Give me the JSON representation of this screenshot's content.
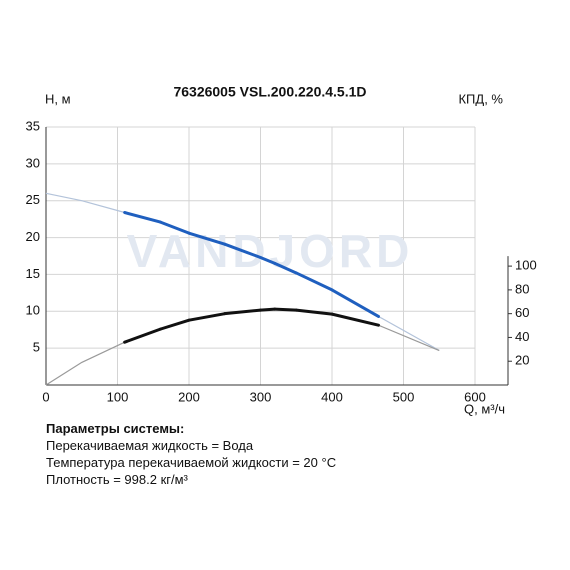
{
  "chart_data": {
    "type": "line",
    "title": "76326005 VSL.200.220.4.5.1D",
    "ylabel": "H, м",
    "y2label": "КПД, %",
    "xlabel": "Q, м³/ч",
    "watermark": "VANDJORD",
    "x": [
      0,
      50,
      110,
      160,
      200,
      250,
      300,
      320,
      350,
      400,
      465,
      550
    ],
    "series": [
      {
        "name": "H",
        "color": "#1f5fbf",
        "thin_color": "#b3c3da",
        "values": [
          26.0,
          25.0,
          23.4,
          22.1,
          20.6,
          19.1,
          17.3,
          16.5,
          15.2,
          12.9,
          9.3,
          4.7
        ]
      },
      {
        "name": "КПД",
        "axis": "y2",
        "color": "#111111",
        "thin_color": "#9a9a9a",
        "values": [
          0,
          19,
          36,
          47,
          54.5,
          60,
          63,
          63.8,
          63,
          59.6,
          50.3,
          29
        ]
      }
    ],
    "operating_range": [
      110,
      465
    ],
    "xlim": [
      0,
      600
    ],
    "xticks": [
      0,
      100,
      200,
      300,
      400,
      500,
      600
    ],
    "ylim": [
      0,
      35
    ],
    "yticks": [
      5,
      10,
      15,
      20,
      25,
      30,
      35
    ],
    "y2lim": [
      0,
      217
    ],
    "y2ticks": [
      20,
      40,
      60,
      80,
      100
    ],
    "grid": true
  },
  "parameters": {
    "heading": "Параметры системы:",
    "lines": [
      "Перекачиваемая жидкость = Вода",
      "Температура перекачиваемой жидкости = 20 °C",
      "Плотность = 998.2 кг/м³"
    ]
  }
}
